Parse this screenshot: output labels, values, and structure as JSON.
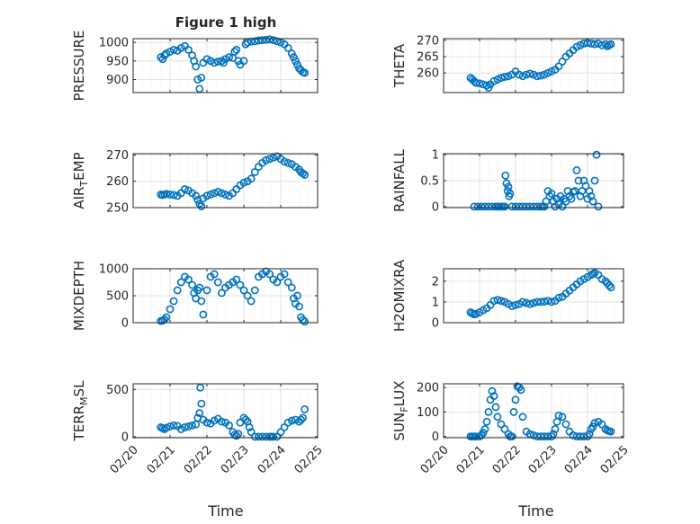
{
  "figure": {
    "title": "Figure 1 high",
    "xlabel": "Time"
  },
  "time_axis": {
    "range": [
      0,
      5
    ],
    "ticks": [
      0,
      1,
      2,
      3,
      4,
      5
    ],
    "tick_labels": [
      "02/20",
      "02/21",
      "02/22",
      "02/23",
      "02/24",
      "02/25"
    ]
  },
  "colors": {
    "marker": "#0072BD",
    "grid": "#dcdcdc",
    "axis": "#262626"
  },
  "chart_data": [
    {
      "type": "scatter",
      "ylabel": "PRESSURE",
      "ylabel_sub": "",
      "ylabel_tail": "",
      "ylim": [
        865,
        1010
      ],
      "yticks": [
        900,
        950,
        1000
      ],
      "ytick_labels": [
        "900",
        "950",
        "1000"
      ],
      "x": [
        0.75,
        0.8,
        0.85,
        0.9,
        1.0,
        1.1,
        1.2,
        1.3,
        1.4,
        1.5,
        1.6,
        1.65,
        1.7,
        1.75,
        1.8,
        1.85,
        1.9,
        2.0,
        2.1,
        2.2,
        2.3,
        2.4,
        2.45,
        2.5,
        2.6,
        2.7,
        2.75,
        2.8,
        2.85,
        2.9,
        3.0,
        3.05,
        3.1,
        3.2,
        3.3,
        3.4,
        3.5,
        3.6,
        3.7,
        3.8,
        3.9,
        4.0,
        4.1,
        4.2,
        4.3,
        4.35,
        4.4,
        4.45,
        4.5,
        4.55,
        4.6,
        4.65
      ],
      "y": [
        960,
        955,
        965,
        970,
        975,
        980,
        978,
        985,
        990,
        980,
        965,
        950,
        935,
        900,
        875,
        905,
        945,
        955,
        950,
        945,
        948,
        950,
        945,
        955,
        960,
        958,
        975,
        980,
        950,
        940,
        950,
        995,
        1000,
        1002,
        1003,
        1005,
        1006,
        1007,
        1008,
        1006,
        1003,
        1000,
        995,
        985,
        970,
        960,
        950,
        940,
        930,
        925,
        920,
        918
      ]
    },
    {
      "type": "scatter",
      "ylabel": "THETA",
      "ylabel_sub": "",
      "ylabel_tail": "",
      "ylim": [
        254,
        270.5
      ],
      "yticks": [
        260,
        265,
        270
      ],
      "ytick_labels": [
        "260",
        "265",
        "270"
      ],
      "x": [
        0.75,
        0.8,
        0.85,
        0.9,
        1.0,
        1.1,
        1.2,
        1.25,
        1.3,
        1.4,
        1.5,
        1.6,
        1.7,
        1.8,
        1.9,
        2.0,
        2.1,
        2.2,
        2.3,
        2.4,
        2.5,
        2.6,
        2.7,
        2.8,
        2.9,
        3.0,
        3.1,
        3.2,
        3.3,
        3.4,
        3.5,
        3.6,
        3.7,
        3.8,
        3.9,
        4.0,
        4.1,
        4.2,
        4.3,
        4.4,
        4.5,
        4.55,
        4.6,
        4.65
      ],
      "y": [
        258.5,
        258,
        257.5,
        257,
        256.8,
        256.5,
        256.2,
        255.5,
        256.5,
        257.5,
        258,
        258.5,
        258.8,
        259,
        259.5,
        260.5,
        259.5,
        259,
        259.5,
        259.8,
        259.5,
        259,
        259.2,
        259.5,
        260,
        260.5,
        261,
        262,
        263.5,
        265,
        266,
        267,
        268,
        268.5,
        269,
        269.2,
        269,
        268.8,
        269,
        268.5,
        268.8,
        268.2,
        268.5,
        268.8
      ]
    },
    {
      "type": "scatter",
      "ylabel": "AIR",
      "ylabel_sub": "T",
      "ylabel_tail": "EMP",
      "ylim": [
        250,
        270.5
      ],
      "yticks": [
        250,
        260,
        270
      ],
      "ytick_labels": [
        "250",
        "260",
        "270"
      ],
      "x": [
        0.75,
        0.8,
        0.85,
        0.9,
        1.0,
        1.1,
        1.2,
        1.3,
        1.4,
        1.5,
        1.6,
        1.7,
        1.75,
        1.8,
        1.85,
        1.9,
        2.0,
        2.1,
        2.2,
        2.3,
        2.4,
        2.5,
        2.6,
        2.7,
        2.8,
        2.9,
        3.0,
        3.1,
        3.2,
        3.3,
        3.4,
        3.5,
        3.6,
        3.7,
        3.8,
        3.9,
        4.0,
        4.1,
        4.2,
        4.3,
        4.4,
        4.5,
        4.55,
        4.6,
        4.65
      ],
      "y": [
        255,
        254.8,
        255,
        255.2,
        255,
        254.8,
        254.5,
        255.5,
        257,
        256.5,
        255.5,
        254.5,
        253,
        251.5,
        250.5,
        253.5,
        254.5,
        255,
        255.5,
        256,
        255.5,
        255,
        254.5,
        255.5,
        257,
        258.5,
        259.5,
        260,
        261,
        263.5,
        265.5,
        267,
        268,
        268.5,
        269,
        269.5,
        268.5,
        267.5,
        267,
        266.5,
        265.5,
        264.5,
        263.5,
        263,
        262.5
      ]
    },
    {
      "type": "scatter",
      "ylabel": "RAINFALL",
      "ylabel_sub": "",
      "ylabel_tail": "",
      "ylim": [
        -0.02,
        1.02
      ],
      "yticks": [
        0,
        0.5,
        1
      ],
      "ytick_labels": [
        "0",
        "0.5",
        "1"
      ],
      "x": [
        0.85,
        0.95,
        1.05,
        1.15,
        1.25,
        1.35,
        1.45,
        1.5,
        1.55,
        1.6,
        1.65,
        1.7,
        1.72,
        1.75,
        1.78,
        1.8,
        1.82,
        1.85,
        1.9,
        2.0,
        2.1,
        2.2,
        2.3,
        2.4,
        2.5,
        2.6,
        2.7,
        2.75,
        2.8,
        2.85,
        2.9,
        2.95,
        3.0,
        3.05,
        3.1,
        3.15,
        3.2,
        3.25,
        3.3,
        3.35,
        3.4,
        3.45,
        3.5,
        3.55,
        3.6,
        3.65,
        3.7,
        3.75,
        3.8,
        3.85,
        3.9,
        3.95,
        4.0,
        4.05,
        4.1,
        4.15,
        4.2,
        4.25,
        4.3
      ],
      "y": [
        0,
        0,
        0,
        0,
        0,
        0,
        0,
        0,
        0,
        0,
        0,
        0,
        0.6,
        0.45,
        0.3,
        0.38,
        0.2,
        0.25,
        0,
        0,
        0,
        0,
        0,
        0,
        0,
        0,
        0,
        0,
        0,
        0.1,
        0.3,
        0.2,
        0.25,
        0.1,
        0,
        0.15,
        0.05,
        0.2,
        0,
        0.15,
        0.1,
        0.3,
        0.2,
        0.15,
        0.28,
        0.3,
        0.7,
        0.5,
        0.2,
        0.3,
        0.5,
        0.4,
        0.15,
        0.3,
        0.2,
        0.1,
        0.5,
        1.0,
        0
      ]
    },
    {
      "type": "scatter",
      "ylabel": "MIXDEPTH",
      "ylabel_sub": "",
      "ylabel_tail": "",
      "ylim": [
        0,
        1000
      ],
      "yticks": [
        0,
        500,
        1000
      ],
      "ytick_labels": [
        "0",
        "500",
        "1000"
      ],
      "x": [
        0.75,
        0.8,
        0.85,
        0.9,
        1.0,
        1.1,
        1.2,
        1.3,
        1.4,
        1.5,
        1.6,
        1.65,
        1.7,
        1.75,
        1.8,
        1.85,
        1.9,
        2.0,
        2.1,
        2.2,
        2.3,
        2.4,
        2.5,
        2.6,
        2.7,
        2.8,
        2.9,
        3.0,
        3.1,
        3.2,
        3.3,
        3.4,
        3.5,
        3.6,
        3.7,
        3.8,
        3.9,
        4.0,
        4.1,
        4.2,
        4.3,
        4.35,
        4.4,
        4.45,
        4.5,
        4.55,
        4.6,
        4.65
      ],
      "y": [
        30,
        40,
        60,
        100,
        250,
        400,
        600,
        750,
        850,
        800,
        700,
        550,
        450,
        600,
        650,
        400,
        150,
        600,
        850,
        900,
        750,
        550,
        650,
        700,
        750,
        800,
        700,
        600,
        500,
        400,
        600,
        850,
        900,
        950,
        900,
        800,
        750,
        850,
        900,
        750,
        650,
        450,
        350,
        500,
        300,
        100,
        50,
        20
      ]
    },
    {
      "type": "scatter",
      "ylabel": "H2OMIXRA",
      "ylabel_sub": "",
      "ylabel_tail": "",
      "ylim": [
        0,
        2.6
      ],
      "yticks": [
        0,
        1,
        2
      ],
      "ytick_labels": [
        "0",
        "1",
        "2"
      ],
      "x": [
        0.75,
        0.8,
        0.85,
        0.9,
        1.0,
        1.1,
        1.2,
        1.3,
        1.4,
        1.5,
        1.6,
        1.7,
        1.8,
        1.9,
        2.0,
        2.1,
        2.2,
        2.3,
        2.4,
        2.5,
        2.6,
        2.7,
        2.8,
        2.9,
        3.0,
        3.1,
        3.2,
        3.3,
        3.4,
        3.5,
        3.6,
        3.7,
        3.8,
        3.9,
        4.0,
        4.1,
        4.15,
        4.2,
        4.3,
        4.4,
        4.5,
        4.55,
        4.6,
        4.65
      ],
      "y": [
        0.5,
        0.45,
        0.4,
        0.42,
        0.5,
        0.6,
        0.7,
        0.85,
        1.05,
        1.1,
        1.05,
        1.0,
        0.9,
        0.8,
        0.85,
        0.9,
        1.0,
        0.95,
        0.9,
        0.95,
        1.0,
        1.0,
        1.02,
        1.05,
        1.0,
        1.05,
        1.2,
        1.25,
        1.4,
        1.55,
        1.7,
        1.85,
        2.0,
        2.1,
        2.2,
        2.3,
        2.35,
        2.4,
        2.3,
        2.1,
        2.0,
        1.9,
        1.8,
        1.7
      ]
    },
    {
      "type": "scatter",
      "ylabel": "TERR",
      "ylabel_sub": "M",
      "ylabel_tail": "SL",
      "ylim": [
        -10,
        560
      ],
      "yticks": [
        0,
        500
      ],
      "ytick_labels": [
        "0",
        "500"
      ],
      "x": [
        0.75,
        0.8,
        0.85,
        0.9,
        1.0,
        1.1,
        1.2,
        1.3,
        1.4,
        1.5,
        1.6,
        1.7,
        1.75,
        1.8,
        1.82,
        1.85,
        1.9,
        2.0,
        2.1,
        2.2,
        2.3,
        2.4,
        2.5,
        2.6,
        2.7,
        2.75,
        2.8,
        2.85,
        2.9,
        3.0,
        3.05,
        3.1,
        3.15,
        3.2,
        3.3,
        3.4,
        3.5,
        3.6,
        3.7,
        3.75,
        3.8,
        3.9,
        4.0,
        4.1,
        4.2,
        4.3,
        4.4,
        4.5,
        4.55,
        4.6,
        4.65
      ],
      "y": [
        100,
        90,
        80,
        95,
        110,
        120,
        115,
        80,
        100,
        110,
        120,
        130,
        200,
        250,
        520,
        350,
        180,
        150,
        140,
        170,
        190,
        160,
        150,
        120,
        50,
        20,
        10,
        30,
        150,
        200,
        180,
        160,
        100,
        50,
        0,
        0,
        0,
        0,
        0,
        0,
        0,
        0,
        50,
        100,
        150,
        170,
        180,
        160,
        180,
        200,
        290
      ]
    },
    {
      "type": "scatter",
      "ylabel": "SUN",
      "ylabel_sub": "F",
      "ylabel_tail": "LUX",
      "ylim": [
        -5,
        215
      ],
      "yticks": [
        0,
        100,
        200
      ],
      "ytick_labels": [
        "0",
        "100",
        "200"
      ],
      "x": [
        0.75,
        0.8,
        0.85,
        0.9,
        1.0,
        1.05,
        1.1,
        1.15,
        1.2,
        1.25,
        1.3,
        1.35,
        1.4,
        1.45,
        1.5,
        1.6,
        1.7,
        1.8,
        1.85,
        1.9,
        1.95,
        2.0,
        2.05,
        2.1,
        2.15,
        2.2,
        2.3,
        2.4,
        2.5,
        2.6,
        2.7,
        2.8,
        2.9,
        3.0,
        3.05,
        3.1,
        3.15,
        3.2,
        3.3,
        3.4,
        3.5,
        3.6,
        3.7,
        3.8,
        3.9,
        4.0,
        4.05,
        4.1,
        4.15,
        4.2,
        4.3,
        4.4,
        4.5,
        4.55,
        4.6,
        4.65
      ],
      "y": [
        0,
        0,
        0,
        0,
        0,
        5,
        15,
        30,
        60,
        100,
        150,
        185,
        165,
        120,
        80,
        50,
        30,
        10,
        0,
        0,
        100,
        150,
        205,
        200,
        190,
        80,
        20,
        10,
        5,
        0,
        0,
        0,
        0,
        0,
        10,
        30,
        60,
        85,
        80,
        50,
        20,
        5,
        0,
        0,
        0,
        0,
        10,
        30,
        40,
        55,
        60,
        50,
        30,
        25,
        22,
        20
      ]
    }
  ]
}
